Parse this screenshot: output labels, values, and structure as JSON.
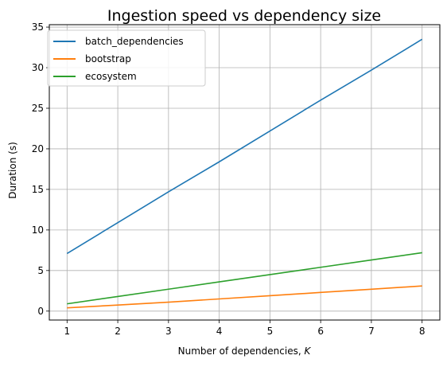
{
  "chart_data": {
    "type": "line",
    "title": "Ingestion speed vs dependency size",
    "xlabel_prefix": "Number of dependencies, ",
    "xlabel_var": "K",
    "ylabel": "Duration (s)",
    "x": [
      1,
      2,
      3,
      4,
      5,
      6,
      7,
      8
    ],
    "series": [
      {
        "name": "batch_dependencies",
        "color": "#1f77b4",
        "values": [
          7.1,
          10.9,
          14.7,
          18.4,
          22.2,
          26.0,
          29.7,
          33.5
        ]
      },
      {
        "name": "bootstrap",
        "color": "#ff7f0e",
        "values": [
          0.4,
          0.75,
          1.1,
          1.5,
          1.9,
          2.3,
          2.7,
          3.1
        ]
      },
      {
        "name": "ecosystem",
        "color": "#2ca02c",
        "values": [
          0.9,
          1.8,
          2.7,
          3.6,
          4.5,
          5.4,
          6.3,
          7.2
        ]
      }
    ],
    "xlim": [
      0.65,
      8.35
    ],
    "ylim": [
      -1.1,
      35.3
    ],
    "xticks": [
      1,
      2,
      3,
      4,
      5,
      6,
      7,
      8
    ],
    "yticks": [
      0,
      5,
      10,
      15,
      20,
      25,
      30,
      35
    ],
    "grid": true,
    "legend_position": "upper-left"
  }
}
